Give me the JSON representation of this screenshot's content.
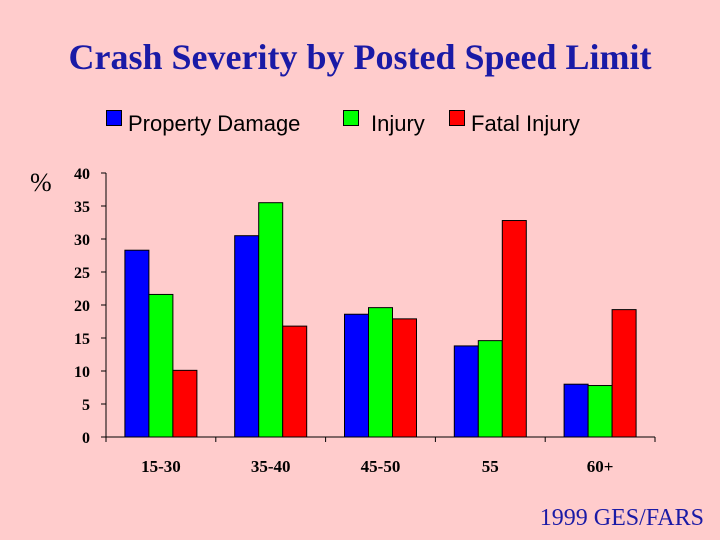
{
  "chart_data": {
    "type": "bar",
    "title": "Crash Severity by Posted Speed Limit",
    "ylabel": "%",
    "xlabel": "",
    "ylim": [
      0,
      40
    ],
    "yticks": [
      0,
      5,
      10,
      15,
      20,
      25,
      30,
      35,
      40
    ],
    "categories": [
      "15-30",
      "35-40",
      "45-50",
      "55",
      "60+"
    ],
    "series": [
      {
        "name": "Property Damage",
        "color": "#0000ff",
        "values": [
          28.3,
          30.5,
          18.6,
          13.8,
          8.0
        ]
      },
      {
        "name": "Injury",
        "color": "#00ff00",
        "values": [
          21.6,
          35.5,
          19.6,
          14.6,
          7.8
        ]
      },
      {
        "name": "Fatal Injury",
        "color": "#ff0000",
        "values": [
          10.1,
          16.8,
          17.9,
          32.8,
          19.3
        ]
      }
    ],
    "legend_position": "top-center",
    "source": "1999 GES/FARS"
  }
}
